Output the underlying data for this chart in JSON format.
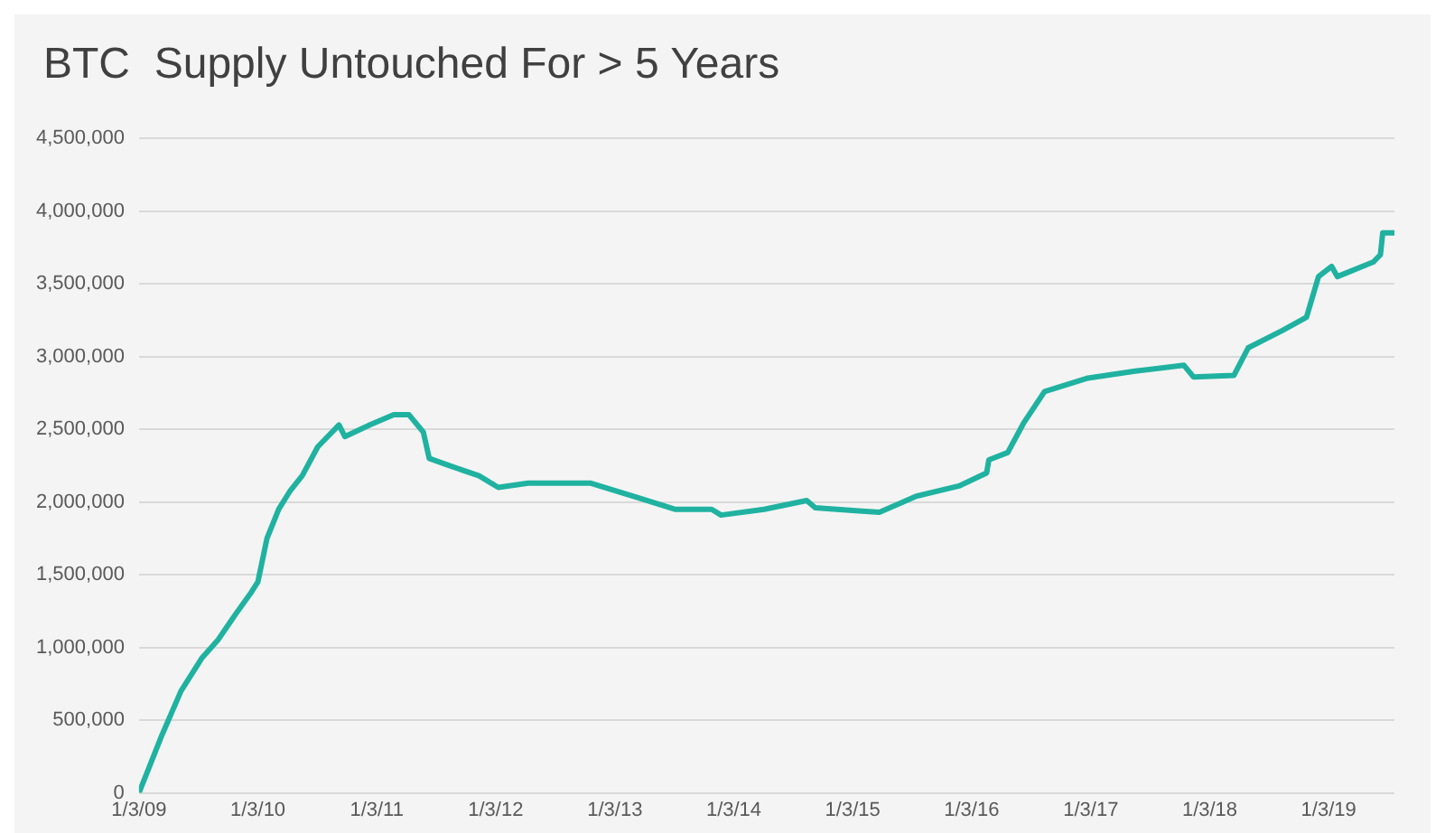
{
  "chart_data": {
    "type": "line",
    "title": "BTC  Supply Untouched For > 5 Years",
    "x": [
      "2009-01-03",
      "2009-03-15",
      "2009-05-12",
      "2009-07-16",
      "2009-09-02",
      "2009-10-27",
      "2009-12-14",
      "2010-01-03",
      "2010-01-31",
      "2010-03-08",
      "2010-04-13",
      "2010-05-19",
      "2010-07-06",
      "2010-09-09",
      "2010-09-27",
      "2010-12-13",
      "2011-02-24",
      "2011-04-12",
      "2011-05-26",
      "2011-06-13",
      "2011-08-14",
      "2011-11-13",
      "2012-01-11",
      "2012-04-12",
      "2012-10-19",
      "2013-03-15",
      "2013-07-06",
      "2013-10-27",
      "2013-11-25",
      "2014-04-06",
      "2014-08-15",
      "2014-09-10",
      "2015-01-12",
      "2015-03-26",
      "2015-07-17",
      "2015-11-25",
      "2016-02-18",
      "2016-02-25",
      "2016-04-23",
      "2016-06-10",
      "2016-08-14",
      "2016-12-21",
      "2017-05-19",
      "2017-10-16",
      "2017-11-14",
      "2018-03-18",
      "2018-05-01",
      "2018-08-15",
      "2018-10-27",
      "2018-12-03",
      "2019-01-12",
      "2019-01-30",
      "2019-05-20",
      "2019-06-11",
      "2019-06-18",
      "2019-07-24"
    ],
    "series": [
      {
        "color": "#20b2a0",
        "values": [
          0,
          400000,
          700000,
          930000,
          1050000,
          1230000,
          1380000,
          1450000,
          1750000,
          1950000,
          2080000,
          2180000,
          2380000,
          2530000,
          2450000,
          2530000,
          2600000,
          2600000,
          2480000,
          2300000,
          2250000,
          2180000,
          2100000,
          2130000,
          2130000,
          2030000,
          1950000,
          1950000,
          1910000,
          1950000,
          2010000,
          1960000,
          1940000,
          1930000,
          2040000,
          2110000,
          2200000,
          2290000,
          2340000,
          2540000,
          2760000,
          2850000,
          2900000,
          2940000,
          2860000,
          2870000,
          3060000,
          3180000,
          3270000,
          3550000,
          3620000,
          3550000,
          3650000,
          3700000,
          3850000,
          3850000
        ]
      }
    ],
    "xlim": [
      "2009-01-03",
      "2019-07-24"
    ],
    "xticks": [
      {
        "value": "2009-01-03",
        "label": "1/3/09"
      },
      {
        "value": "2010-01-03",
        "label": "1/3/10"
      },
      {
        "value": "2011-01-03",
        "label": "1/3/11"
      },
      {
        "value": "2012-01-03",
        "label": "1/3/12"
      },
      {
        "value": "2013-01-03",
        "label": "1/3/13"
      },
      {
        "value": "2014-01-03",
        "label": "1/3/14"
      },
      {
        "value": "2015-01-03",
        "label": "1/3/15"
      },
      {
        "value": "2016-01-03",
        "label": "1/3/16"
      },
      {
        "value": "2017-01-03",
        "label": "1/3/17"
      },
      {
        "value": "2018-01-03",
        "label": "1/3/18"
      },
      {
        "value": "2019-01-03",
        "label": "1/3/19"
      }
    ],
    "ylim": [
      0,
      4500000
    ],
    "yticks": [
      {
        "value": 0,
        "label": "0"
      },
      {
        "value": 500000,
        "label": "500,000"
      },
      {
        "value": 1000000,
        "label": "1,000,000"
      },
      {
        "value": 1500000,
        "label": "1,500,000"
      },
      {
        "value": 2000000,
        "label": "2,000,000"
      },
      {
        "value": 2500000,
        "label": "2,500,000"
      },
      {
        "value": 3000000,
        "label": "3,000,000"
      },
      {
        "value": 3500000,
        "label": "3,500,000"
      },
      {
        "value": 4000000,
        "label": "4,000,000"
      },
      {
        "value": 4500000,
        "label": "4,500,000"
      }
    ],
    "grid": "y",
    "legend": false,
    "marker": "none",
    "line_style": "solid"
  }
}
